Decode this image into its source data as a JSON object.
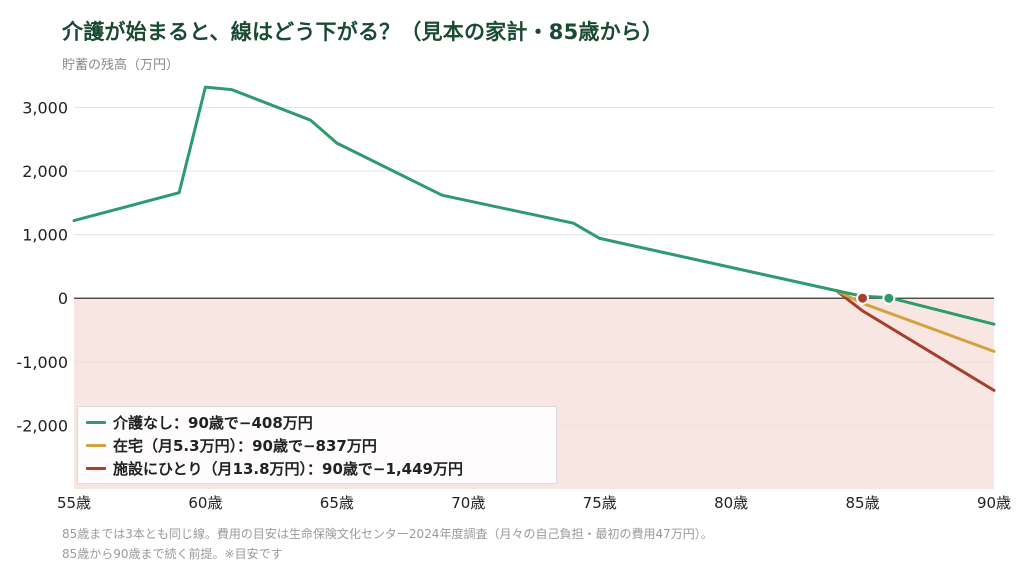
{
  "title": "介護が始まると、線はどう下がる？（見本の家計・85歳から）",
  "ylabel": "貯蓄の残高（万円）",
  "footnote": [
    "85歳までは3本とも同じ線。費用の目安は生命保険文化センター2024年度調査（月々の自己負担・最初の費用47万円）。",
    "85歳から90歳まで続く前提。※目安です"
  ],
  "chart_data": {
    "type": "line",
    "xlim": [
      55,
      90
    ],
    "ylim": [
      -3000,
      3400
    ],
    "x_ticks": [
      55,
      60,
      65,
      70,
      75,
      80,
      85,
      90
    ],
    "x_tick_labels": [
      "55歳",
      "60歳",
      "65歳",
      "70歳",
      "75歳",
      "80歳",
      "85歳",
      "90歳"
    ],
    "y_ticks": [
      3000,
      2000,
      1000,
      0,
      -1000,
      -2000
    ],
    "y_tick_labels": [
      "3,000",
      "2,000",
      "1,000",
      "0",
      "-1,000",
      "-2,000"
    ],
    "grid": true,
    "negative_region_color": "#f7e6e1",
    "legend_position": "bottom-left",
    "series": [
      {
        "name": "介護なし：90歳で−408万円",
        "color": "#2e9a6e",
        "x": [
          55,
          59,
          60,
          61,
          64,
          65,
          69,
          74,
          75,
          84,
          85,
          86,
          90
        ],
        "y": [
          1220,
          1660,
          3320,
          3280,
          2800,
          2440,
          1620,
          1180,
          940,
          120,
          30,
          10,
          -408
        ]
      },
      {
        "name": "在宅（月5.3万円）：90歳で−837万円",
        "color": "#d4a23a",
        "x": [
          84,
          85,
          90
        ],
        "y": [
          120,
          -80,
          -837
        ]
      },
      {
        "name": "施設にひとり（月13.8万円）：90歳で−1,449万円",
        "color": "#a83d2c",
        "x": [
          84,
          85,
          90
        ],
        "y": [
          120,
          -200,
          -1449
        ]
      }
    ],
    "markers": [
      {
        "x": 85,
        "y": 0,
        "color": "#a83d2c"
      },
      {
        "x": 86,
        "y": 0,
        "color": "#2e9a6e"
      }
    ]
  }
}
